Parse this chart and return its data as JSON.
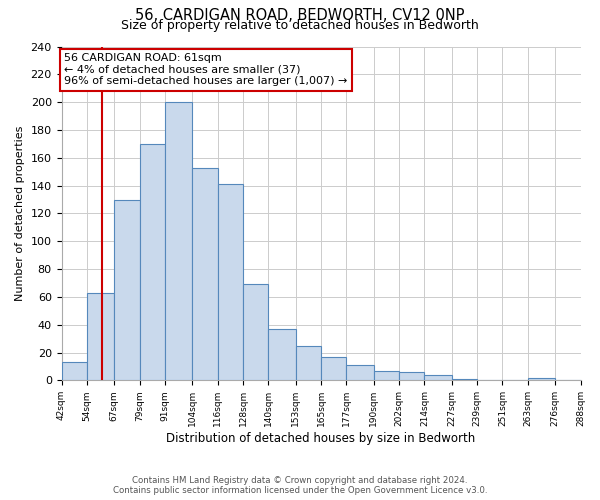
{
  "title": "56, CARDIGAN ROAD, BEDWORTH, CV12 0NP",
  "subtitle": "Size of property relative to detached houses in Bedworth",
  "xlabel": "Distribution of detached houses by size in Bedworth",
  "ylabel": "Number of detached properties",
  "bin_edges": [
    42,
    54,
    67,
    79,
    91,
    104,
    116,
    128,
    140,
    153,
    165,
    177,
    190,
    202,
    214,
    227,
    239,
    251,
    263,
    276,
    288
  ],
  "bar_heights": [
    13,
    63,
    130,
    170,
    200,
    153,
    141,
    69,
    37,
    25,
    17,
    11,
    7,
    6,
    4,
    1,
    0,
    0,
    2,
    0
  ],
  "bar_color": "#c9d9ec",
  "bar_edge_color": "#5588bb",
  "red_line_x": 61,
  "annotation_title": "56 CARDIGAN ROAD: 61sqm",
  "annotation_line1": "← 4% of detached houses are smaller (37)",
  "annotation_line2": "96% of semi-detached houses are larger (1,007) →",
  "annotation_box_color": "#ffffff",
  "annotation_box_edge_color": "#cc0000",
  "ylim": [
    0,
    240
  ],
  "yticks": [
    0,
    20,
    40,
    60,
    80,
    100,
    120,
    140,
    160,
    180,
    200,
    220,
    240
  ],
  "footnote1": "Contains HM Land Registry data © Crown copyright and database right 2024.",
  "footnote2": "Contains public sector information licensed under the Open Government Licence v3.0."
}
